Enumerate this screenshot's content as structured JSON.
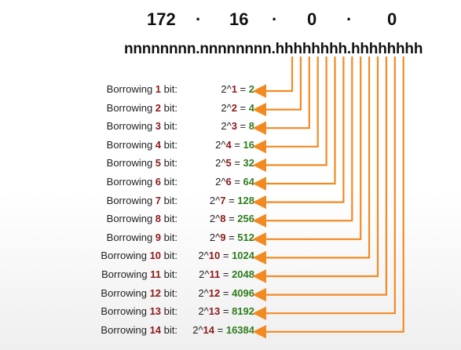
{
  "address": {
    "octets": [
      "172",
      "16",
      "0",
      "0"
    ],
    "separator": "·"
  },
  "mask_pattern": "nnnnnnnn.nnnnnnnn.hhhhhhhh.hhhhhhhh",
  "rows": [
    {
      "prefix": "Borrowing ",
      "n": "1",
      "suffix": " bit:",
      "base": "2^",
      "exp": "1",
      "eq": " = ",
      "result": "2"
    },
    {
      "prefix": "Borrowing ",
      "n": "2",
      "suffix": " bit:",
      "base": "2^",
      "exp": "2",
      "eq": " = ",
      "result": "4"
    },
    {
      "prefix": "Borrowing ",
      "n": "3",
      "suffix": " bit:",
      "base": "2^",
      "exp": "3",
      "eq": " = ",
      "result": "8"
    },
    {
      "prefix": "Borrowing ",
      "n": "4",
      "suffix": " bit:",
      "base": "2^",
      "exp": "4",
      "eq": " = ",
      "result": "16"
    },
    {
      "prefix": "Borrowing ",
      "n": "5",
      "suffix": " bit:",
      "base": "2^",
      "exp": "5",
      "eq": " = ",
      "result": "32"
    },
    {
      "prefix": "Borrowing ",
      "n": "6",
      "suffix": " bit:",
      "base": "2^",
      "exp": "6",
      "eq": " = ",
      "result": "64"
    },
    {
      "prefix": "Borrowing ",
      "n": "7",
      "suffix": " bit:",
      "base": "2^",
      "exp": "7",
      "eq": " = ",
      "result": "128"
    },
    {
      "prefix": "Borrowing ",
      "n": "8",
      "suffix": " bit:",
      "base": "2^",
      "exp": "8",
      "eq": " = ",
      "result": "256"
    },
    {
      "prefix": "Borrowing ",
      "n": "9",
      "suffix": " bit:",
      "base": "2^",
      "exp": "9",
      "eq": " = ",
      "result": "512"
    },
    {
      "prefix": "Borrowing ",
      "n": "10",
      "suffix": " bit:",
      "base": "2^",
      "exp": "10",
      "eq": " = ",
      "result": "1024"
    },
    {
      "prefix": "Borrowing ",
      "n": "11",
      "suffix": " bit:",
      "base": "2^",
      "exp": "11",
      "eq": " = ",
      "result": "2048"
    },
    {
      "prefix": "Borrowing ",
      "n": "12",
      "suffix": " bit:",
      "base": "2^",
      "exp": "12",
      "eq": " = ",
      "result": "4096"
    },
    {
      "prefix": "Borrowing ",
      "n": "13",
      "suffix": " bit:",
      "base": "2^",
      "exp": "13",
      "eq": " = ",
      "result": "8192"
    },
    {
      "prefix": "Borrowing ",
      "n": "14",
      "suffix": " bit:",
      "base": "2^",
      "exp": "14",
      "eq": " = ",
      "result": "16384"
    }
  ],
  "colors": {
    "arrow": "#f28a22",
    "bits": "#8b1a1a",
    "result": "#2e7d1e"
  }
}
